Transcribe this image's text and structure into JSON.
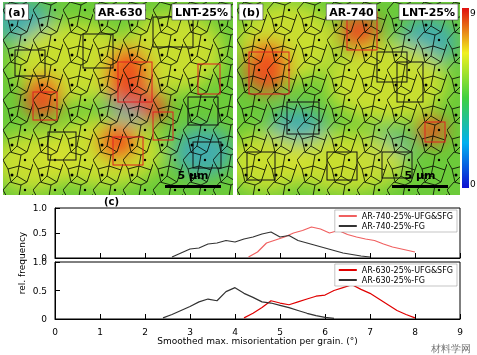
{
  "maps": [
    {
      "label": "(a)",
      "sample": "AR-630",
      "condition": "LNT-25%",
      "scale_bar": "5 μm"
    },
    {
      "label": "(b)",
      "sample": "AR-740",
      "condition": "LNT-25%",
      "scale_bar": "5 μm"
    }
  ],
  "colorbar": {
    "range": [
      0,
      9
    ],
    "ticks": [
      0,
      9
    ]
  },
  "panel_label": "(c)",
  "ylabel": "rel. frequency",
  "watermark": "材料学网",
  "chart_data": [
    {
      "type": "line",
      "xlim": [
        0,
        9
      ],
      "xticks": [
        0,
        1,
        2,
        3,
        4,
        5,
        6,
        7,
        8,
        9
      ],
      "ylim": [
        0,
        1
      ],
      "yticks": [
        0,
        0.5,
        {
          "value": 1,
          "label": "1.0"
        }
      ],
      "grid": false,
      "legend": "upper right",
      "tick_labels": "y",
      "series": [
        {
          "name": "AR-740-25%-UFG&SFG",
          "color": "#f06060",
          "x": [
            4.3,
            4.5,
            4.7,
            4.9,
            5.1,
            5.3,
            5.5,
            5.7,
            5.9,
            6.1,
            6.3,
            6.5,
            6.7,
            6.9,
            7.1,
            7.3,
            7.5,
            7.7,
            7.9,
            8.0
          ],
          "values": [
            0.02,
            0.12,
            0.3,
            0.36,
            0.42,
            0.5,
            0.55,
            0.62,
            0.58,
            0.5,
            0.55,
            0.47,
            0.42,
            0.38,
            0.35,
            0.28,
            0.22,
            0.18,
            0.14,
            0.12
          ]
        },
        {
          "name": "AR-740-25%-FG",
          "color": "#333333",
          "x": [
            2.6,
            2.8,
            3.0,
            3.2,
            3.4,
            3.6,
            3.8,
            4.0,
            4.2,
            4.4,
            4.6,
            4.8,
            5.0,
            5.2,
            5.4,
            5.6,
            5.8,
            6.0,
            6.2,
            6.4,
            6.6,
            6.8,
            7.0
          ],
          "values": [
            0.02,
            0.1,
            0.18,
            0.2,
            0.28,
            0.3,
            0.35,
            0.32,
            0.38,
            0.42,
            0.48,
            0.52,
            0.42,
            0.45,
            0.35,
            0.3,
            0.25,
            0.2,
            0.15,
            0.1,
            0.07,
            0.04,
            0.02
          ]
        }
      ]
    },
    {
      "type": "line",
      "xlabel": "Smoothed max. misorientation per grain. (°)",
      "xlim": [
        0,
        9
      ],
      "xticks": [
        0,
        1,
        2,
        3,
        4,
        5,
        6,
        7,
        8,
        9
      ],
      "ylim": [
        0,
        1
      ],
      "yticks": [
        0,
        0.5,
        {
          "value": 1,
          "label": "1.0"
        }
      ],
      "grid": false,
      "legend": "upper right",
      "series": [
        {
          "name": "AR-630-25%-UFG&SFG",
          "color": "#e00000",
          "x": [
            4.2,
            4.4,
            4.6,
            4.8,
            5.0,
            5.2,
            5.4,
            5.6,
            5.8,
            6.0,
            6.2,
            6.4,
            6.6,
            6.8,
            7.0,
            7.2,
            7.4,
            7.6,
            7.8,
            8.0
          ],
          "values": [
            0.02,
            0.1,
            0.2,
            0.32,
            0.28,
            0.25,
            0.3,
            0.35,
            0.4,
            0.42,
            0.5,
            0.55,
            0.6,
            0.52,
            0.45,
            0.35,
            0.25,
            0.15,
            0.08,
            0.02
          ]
        },
        {
          "name": "AR-630-25%-FG",
          "color": "#333333",
          "x": [
            2.4,
            2.6,
            2.8,
            3.0,
            3.2,
            3.4,
            3.6,
            3.8,
            4.0,
            4.2,
            4.4,
            4.6,
            4.8,
            5.0,
            5.2,
            5.4,
            5.6,
            5.8,
            6.0,
            6.2
          ],
          "values": [
            0.02,
            0.08,
            0.15,
            0.22,
            0.3,
            0.35,
            0.32,
            0.48,
            0.55,
            0.45,
            0.38,
            0.3,
            0.28,
            0.24,
            0.2,
            0.15,
            0.1,
            0.06,
            0.03,
            0.01
          ]
        }
      ]
    }
  ]
}
